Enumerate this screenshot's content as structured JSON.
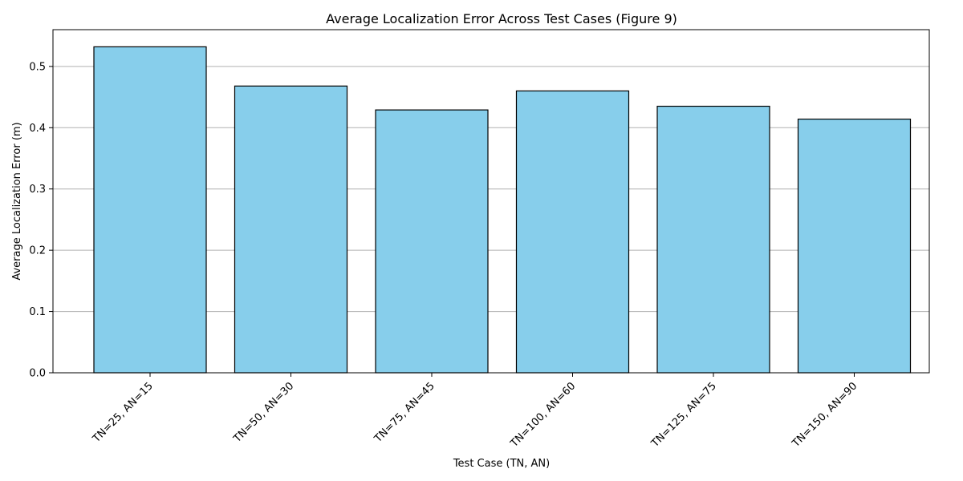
{
  "chart_data": {
    "type": "bar",
    "title": "Average Localization Error Across Test Cases (Figure 9)",
    "xlabel": "Test Case (TN, AN)",
    "ylabel": "Average Localization Error (m)",
    "categories": [
      "TN=25, AN=15",
      "TN=50, AN=30",
      "TN=75, AN=45",
      "TN=100, AN=60",
      "TN=125, AN=75",
      "TN=150, AN=90"
    ],
    "values": [
      0.532,
      0.468,
      0.429,
      0.46,
      0.435,
      0.414
    ],
    "ylim": [
      0,
      0.56
    ],
    "yticks": [
      0.0,
      0.1,
      0.2,
      0.3,
      0.4,
      0.5
    ],
    "ytick_labels": [
      "0.0",
      "0.1",
      "0.2",
      "0.3",
      "0.4",
      "0.5"
    ],
    "grid": "y",
    "bar_color": "#87ceeb",
    "edge_color": "#000000",
    "grid_color": "#b0b0b0"
  }
}
